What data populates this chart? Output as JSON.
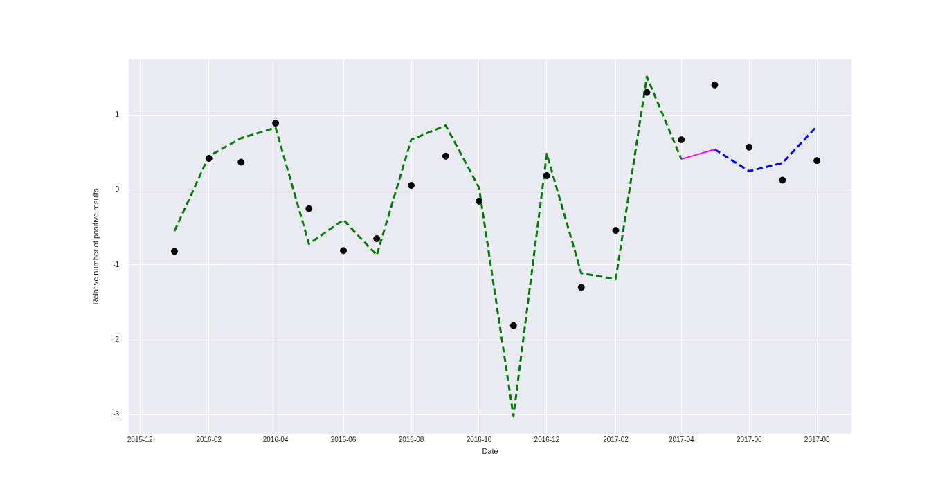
{
  "chart_data": {
    "type": "scatter",
    "xlabel": "Date",
    "ylabel": "Relative number of positive results",
    "xlim": [
      "2015-11-21",
      "2017-09-01"
    ],
    "xticks": [
      "2015-12",
      "2016-02",
      "2016-04",
      "2016-06",
      "2016-08",
      "2016-10",
      "2016-12",
      "2017-02",
      "2017-04",
      "2017-06",
      "2017-08"
    ],
    "ylim": [
      -3.25,
      1.74
    ],
    "yticks": [
      -3,
      -2,
      -1,
      0,
      1
    ],
    "grid": true,
    "series": [
      {
        "type": "scatter",
        "color": "#000000",
        "marker": "circle",
        "x": [
          "2016-01",
          "2016-02",
          "2016-03",
          "2016-04",
          "2016-05",
          "2016-06",
          "2016-07",
          "2016-08",
          "2016-09",
          "2016-10",
          "2016-11",
          "2016-12",
          "2017-01",
          "2017-02",
          "2017-03",
          "2017-04",
          "2017-05",
          "2017-06",
          "2017-07",
          "2017-08"
        ],
        "values": [
          -0.82,
          0.42,
          0.37,
          0.89,
          -0.25,
          -0.81,
          -0.65,
          0.06,
          0.45,
          -0.15,
          -1.81,
          0.19,
          -1.3,
          -0.54,
          1.3,
          0.67,
          1.4,
          0.57,
          0.13,
          0.39
        ]
      },
      {
        "type": "line",
        "color": "#008000",
        "line_style": "dashed",
        "marker": "none",
        "x": [
          "2016-01",
          "2016-02",
          "2016-03",
          "2016-04",
          "2016-05",
          "2016-06",
          "2016-07",
          "2016-08",
          "2016-09",
          "2016-10",
          "2016-11",
          "2016-12",
          "2017-01",
          "2017-02",
          "2017-03",
          "2017-04"
        ],
        "values": [
          -0.55,
          0.45,
          0.69,
          0.83,
          -0.72,
          -0.4,
          -0.87,
          0.67,
          0.86,
          0.03,
          -3.02,
          0.48,
          -1.11,
          -1.19,
          1.51,
          0.41
        ]
      },
      {
        "type": "line",
        "color": "#ff00ff",
        "line_style": "solid",
        "marker": "none",
        "x": [
          "2017-04",
          "2017-05"
        ],
        "values": [
          0.41,
          0.54
        ]
      },
      {
        "type": "line",
        "color": "#0000ff",
        "line_style": "dashed",
        "marker": "none",
        "x": [
          "2017-05",
          "2017-06",
          "2017-07",
          "2017-08"
        ],
        "values": [
          0.54,
          0.25,
          0.36,
          0.85
        ]
      }
    ]
  }
}
